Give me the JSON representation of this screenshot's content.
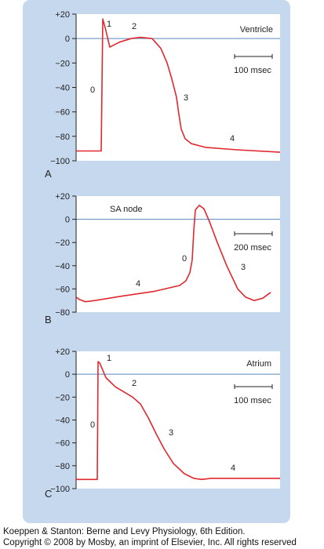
{
  "chart_data": [
    {
      "type": "line",
      "panel_letter": "A",
      "title": "Ventricle",
      "scale_bar_label": "100 msec",
      "ylim": [
        -100,
        20
      ],
      "yticks": [
        "+20",
        "0",
        "−20",
        "−40",
        "−60",
        "−80",
        "−100"
      ],
      "phase_labels": [
        "0",
        "1",
        "2",
        "3",
        "4"
      ],
      "series": [
        {
          "color": "#e0282e",
          "points": [
            [
              0,
              -92
            ],
            [
              32,
              -92
            ],
            [
              34,
              16
            ],
            [
              37,
              9
            ],
            [
              43,
              -7
            ],
            [
              55,
              -3
            ],
            [
              70,
              0
            ],
            [
              82,
              1
            ],
            [
              97,
              0
            ],
            [
              108,
              -8
            ],
            [
              116,
              -20
            ],
            [
              122,
              -33
            ],
            [
              128,
              -48
            ],
            [
              131,
              -62
            ],
            [
              134,
              -74
            ],
            [
              139,
              -82
            ],
            [
              147,
              -86
            ],
            [
              165,
              -89
            ],
            [
              205,
              -91
            ],
            [
              260,
              -93
            ]
          ]
        }
      ]
    },
    {
      "type": "line",
      "panel_letter": "B",
      "title": "SA node",
      "scale_bar_label": "200 msec",
      "ylim": [
        -80,
        20
      ],
      "yticks": [
        "+20",
        "0",
        "−20",
        "−40",
        "−60",
        "−80"
      ],
      "phase_labels": [
        "0",
        "4",
        "3"
      ],
      "series": [
        {
          "color": "#e0282e",
          "points": [
            [
              0,
              -67
            ],
            [
              4,
              -69
            ],
            [
              12,
              -71
            ],
            [
              24,
              -70
            ],
            [
              60,
              -66
            ],
            [
              100,
              -62
            ],
            [
              132,
              -57
            ],
            [
              140,
              -53
            ],
            [
              145,
              -46
            ],
            [
              148,
              -35
            ],
            [
              150,
              -10
            ],
            [
              152,
              8
            ],
            [
              157,
              12
            ],
            [
              163,
              9
            ],
            [
              170,
              -2
            ],
            [
              180,
              -20
            ],
            [
              192,
              -40
            ],
            [
              206,
              -60
            ],
            [
              216,
              -67
            ],
            [
              227,
              -70
            ],
            [
              238,
              -68
            ],
            [
              248,
              -63
            ]
          ]
        }
      ]
    },
    {
      "type": "line",
      "panel_letter": "C",
      "title": "Atrium",
      "scale_bar_label": "100 msec",
      "ylim": [
        -100,
        20
      ],
      "yticks": [
        "+20",
        "0",
        "−20",
        "−40",
        "−60",
        "−80",
        "−100"
      ],
      "phase_labels": [
        "0",
        "1",
        "2",
        "3",
        "4"
      ],
      "series": [
        {
          "color": "#e0282e",
          "points": [
            [
              0,
              -92
            ],
            [
              27,
              -92
            ],
            [
              28,
              11
            ],
            [
              30,
              10
            ],
            [
              38,
              -3
            ],
            [
              50,
              -11
            ],
            [
              72,
              -20
            ],
            [
              82,
              -26
            ],
            [
              92,
              -38
            ],
            [
              102,
              -52
            ],
            [
              112,
              -65
            ],
            [
              124,
              -78
            ],
            [
              138,
              -87
            ],
            [
              150,
              -91
            ],
            [
              160,
              -92
            ],
            [
              172,
              -91
            ],
            [
              215,
              -91
            ],
            [
              260,
              -91
            ]
          ]
        }
      ]
    }
  ],
  "caption": {
    "line1": "Koeppen & Stanton: Berne and Levy Physiology, 6th Edition.",
    "line2": "Copyright © 2008 by Mosby, an imprint of Elsevier, Inc. All rights reserved"
  }
}
